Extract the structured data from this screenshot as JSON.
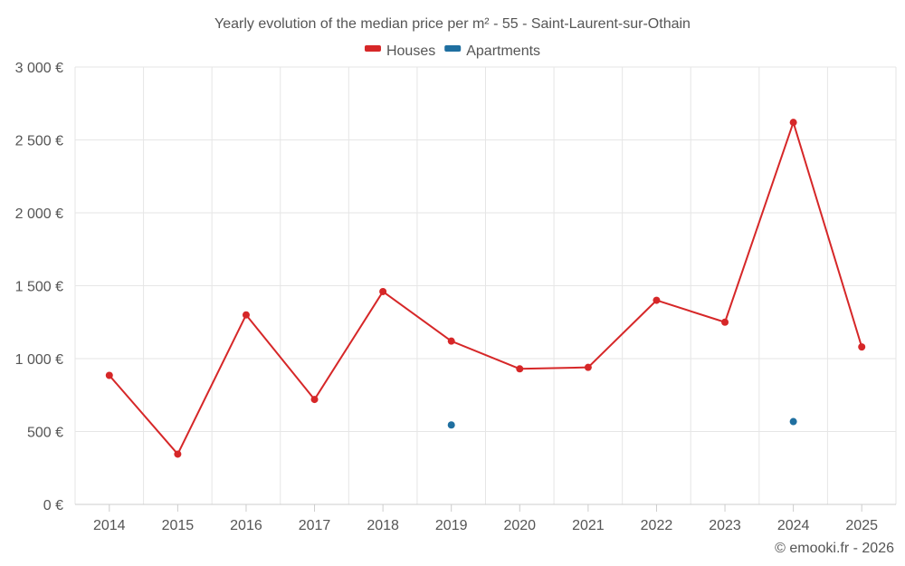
{
  "chart_data": {
    "type": "line",
    "title": "Yearly evolution of the median price per m² - 55 - Saint-Laurent-sur-Othain",
    "xlabel": "",
    "ylabel": "",
    "categories": [
      "2014",
      "2015",
      "2016",
      "2017",
      "2018",
      "2019",
      "2020",
      "2021",
      "2022",
      "2023",
      "2024",
      "2025"
    ],
    "ylim": [
      0,
      3000
    ],
    "yticks": [
      0,
      500,
      1000,
      1500,
      2000,
      2500,
      3000
    ],
    "ytick_labels": [
      "0 €",
      "500 €",
      "1 000 €",
      "1 500 €",
      "2 000 €",
      "2 500 €",
      "3 000 €"
    ],
    "grid": true,
    "legend_position": "top-center",
    "series": [
      {
        "name": "Houses",
        "color": "#d62728",
        "values": [
          885,
          345,
          1300,
          720,
          1460,
          1120,
          930,
          940,
          1400,
          1250,
          2620,
          1080
        ]
      },
      {
        "name": "Apartments",
        "color": "#1f6fa0",
        "values": [
          null,
          null,
          null,
          null,
          null,
          545,
          null,
          null,
          null,
          null,
          568,
          null
        ]
      }
    ]
  },
  "credit": "© emooki.fr - 2026"
}
